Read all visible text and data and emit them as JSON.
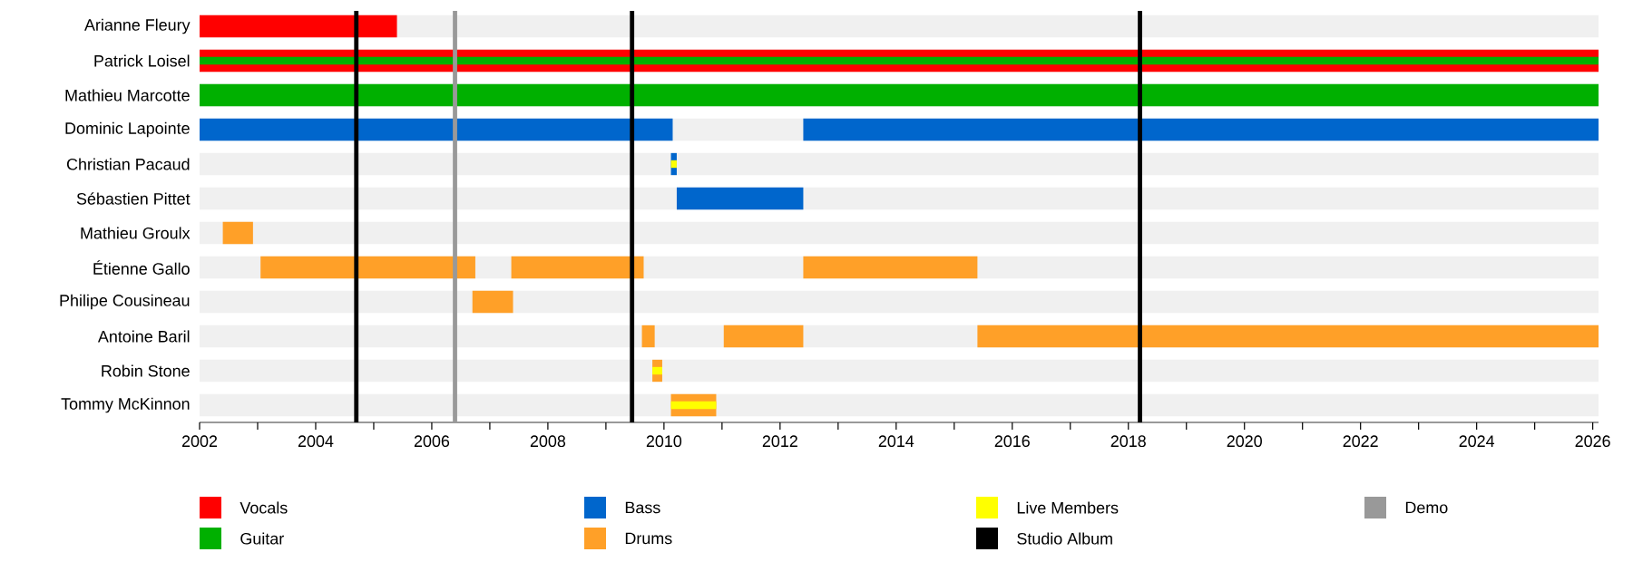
{
  "chart_data": {
    "type": "bar",
    "orientation": "horizontal",
    "categories": [
      "Arianne Fleury",
      "Patrick Loisel",
      "Mathieu Marcotte",
      "Dominic Lapointe",
      "Christian Pacaud",
      "Sébastien Pittet",
      "Mathieu Groulx",
      "Étienne Gallo",
      "Philipe Cousineau",
      "Antoine Baril",
      "Robin Stone",
      "Tommy McKinnon"
    ],
    "series": [
      {
        "name": "Vocals",
        "color": "#ff0000",
        "base": [
          2002,
          2002,
          null,
          null,
          null,
          null,
          null,
          null,
          null,
          null,
          null,
          null
        ],
        "values": [
          3.4,
          24.1,
          null,
          null,
          null,
          null,
          null,
          null,
          null,
          null,
          null,
          null
        ]
      },
      {
        "name": "Guitar",
        "color": "#00b000",
        "base": [
          null,
          2002,
          2002,
          null,
          null,
          null,
          null,
          null,
          null,
          null,
          null,
          null
        ],
        "values": [
          null,
          24.1,
          24.1,
          null,
          null,
          null,
          null,
          null,
          null,
          null,
          null,
          null
        ]
      },
      {
        "name": "Bass",
        "color": "#0066cc",
        "base": [
          null,
          null,
          null,
          2002,
          2010.12,
          2010.22,
          null,
          null,
          null,
          null,
          null,
          null
        ],
        "values": [
          null,
          null,
          null,
          8.15,
          0.1,
          2.18,
          null,
          null,
          null,
          null,
          null,
          null
        ]
      },
      {
        "color": "#0066cc",
        "base": [
          null,
          null,
          null,
          2012.4,
          null,
          null,
          null,
          null,
          null,
          null,
          null,
          null
        ],
        "values": [
          null,
          null,
          null,
          13.7,
          null,
          null,
          null,
          null,
          null,
          null,
          null,
          null
        ]
      },
      {
        "name": "Drums",
        "color": "#ffa028",
        "base": [
          null,
          null,
          null,
          null,
          null,
          null,
          2002.4,
          2003.05,
          2006.7,
          2009.62,
          2009.8,
          2010.12
        ],
        "values": [
          null,
          null,
          null,
          null,
          null,
          null,
          0.52,
          3.7,
          0.7,
          0.22,
          0.17,
          0.78
        ]
      },
      {
        "color": "#ffa028",
        "base": [
          null,
          null,
          null,
          null,
          null,
          null,
          null,
          2007.37,
          null,
          2011.03,
          null,
          null
        ],
        "values": [
          null,
          null,
          null,
          null,
          null,
          null,
          null,
          2.28,
          null,
          1.37,
          null,
          null
        ]
      },
      {
        "color": "#ffa028",
        "base": [
          null,
          null,
          null,
          null,
          null,
          null,
          null,
          2012.4,
          null,
          2015.4,
          null,
          null
        ],
        "values": [
          null,
          null,
          null,
          null,
          null,
          null,
          null,
          3.0,
          null,
          10.7,
          null,
          null
        ]
      },
      {
        "name": "Live Members",
        "color": "#ffff00",
        "base": [
          null,
          null,
          null,
          null,
          2010.12,
          null,
          null,
          null,
          null,
          null,
          2009.8,
          2010.12
        ],
        "values": [
          null,
          null,
          null,
          null,
          0.1,
          null,
          null,
          null,
          null,
          null,
          0.17,
          0.78
        ]
      }
    ],
    "ref_lines": [
      {
        "axis": "x",
        "value": 2004.7,
        "label": "Studio Album",
        "color": "#000000"
      },
      {
        "axis": "x",
        "value": 2006.4,
        "label": "Demo",
        "color": "#999999"
      },
      {
        "axis": "x",
        "value": 2009.45,
        "color": "#000000"
      },
      {
        "axis": "x",
        "value": 2018.2,
        "color": "#000000"
      }
    ],
    "xlim": [
      2002,
      2026.1
    ],
    "xticks": [
      2002,
      {
        "value": 2003,
        "label": null
      },
      2004,
      {
        "value": 2005,
        "label": null
      },
      2006,
      {
        "value": 2007,
        "label": null
      },
      2008,
      {
        "value": 2009,
        "label": null
      },
      2010,
      {
        "value": 2011,
        "label": null
      },
      2012,
      {
        "value": 2013,
        "label": null
      },
      2014,
      {
        "value": 2015,
        "label": null
      },
      2016,
      {
        "value": 2017,
        "label": null
      },
      2018,
      {
        "value": 2019,
        "label": null
      },
      2020,
      {
        "value": 2021,
        "label": null
      },
      2022,
      {
        "value": 2023,
        "label": null
      },
      2024,
      {
        "value": 2025,
        "label": null
      },
      2026
    ],
    "legend": "bottom"
  }
}
